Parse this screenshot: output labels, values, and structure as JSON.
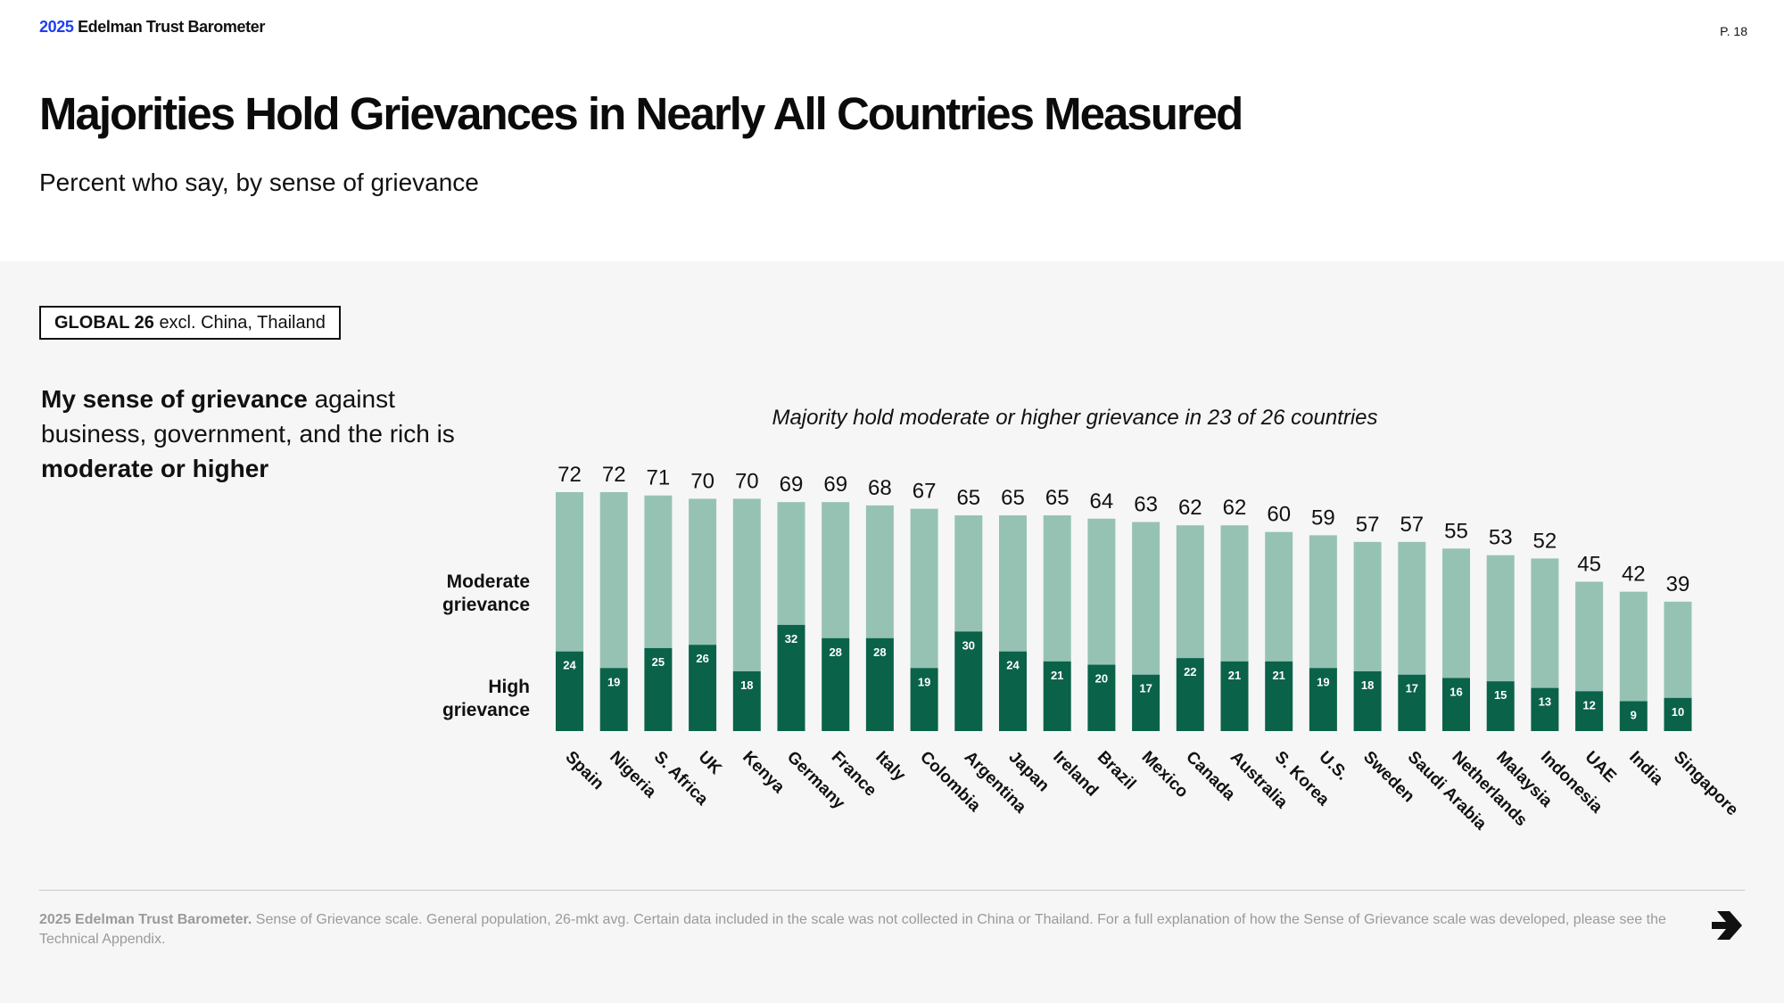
{
  "header": {
    "brand_year": "2025",
    "brand_name": "Edelman Trust Barometer",
    "page": "P. 18"
  },
  "title": "Majorities Hold Grievances in Nearly All Countries Measured",
  "subtitle": "Percent who say, by sense of grievance",
  "tag": {
    "bold": "GLOBAL 26",
    "rest": "excl. China, Thailand"
  },
  "lead": {
    "part1_bold": "My sense of grievance",
    "part2": "against business, government, and the rich is",
    "part3_bold": "moderate or higher"
  },
  "row_labels": {
    "moderate": [
      "Moderate",
      "grievance"
    ],
    "high": [
      "High",
      "grievance"
    ]
  },
  "chart_note": "Majority hold moderate or higher grievance in 23 of 26 countries",
  "colors": {
    "moderate": "#96c2b4",
    "high": "#0a6249",
    "panel": "#f6f6f6"
  },
  "chart_data": {
    "type": "bar",
    "stacked": true,
    "categories": [
      "Spain",
      "Nigeria",
      "S. Africa",
      "UK",
      "Kenya",
      "Germany",
      "France",
      "Italy",
      "Colombia",
      "Argentina",
      "Japan",
      "Ireland",
      "Brazil",
      "Mexico",
      "Canada",
      "Australia",
      "S. Korea",
      "U.S.",
      "Sweden",
      "Saudi Arabia",
      "Netherlands",
      "Malaysia",
      "Indonesia",
      "UAE",
      "India",
      "Singapore"
    ],
    "totals": [
      72,
      72,
      71,
      70,
      70,
      69,
      69,
      68,
      67,
      65,
      65,
      65,
      64,
      63,
      62,
      62,
      60,
      59,
      57,
      57,
      55,
      53,
      52,
      45,
      42,
      39
    ],
    "series": [
      {
        "name": "High grievance",
        "values": [
          24,
          19,
          25,
          26,
          18,
          32,
          28,
          28,
          19,
          30,
          24,
          21,
          20,
          17,
          22,
          21,
          21,
          19,
          18,
          17,
          16,
          15,
          13,
          12,
          9,
          10
        ]
      }
    ],
    "title": "Majority hold moderate or higher grievance in 23 of 26 countries",
    "ylim": [
      0,
      72
    ],
    "grid": false,
    "legend": "left"
  },
  "footer": {
    "bold": "2025 Edelman Trust Barometer.",
    "text": "Sense of Grievance scale. General population, 26-mkt avg. Certain data included in the scale was not collected in China or Thailand. For a full explanation of how the Sense of Grievance scale was developed, please see the Technical Appendix."
  }
}
